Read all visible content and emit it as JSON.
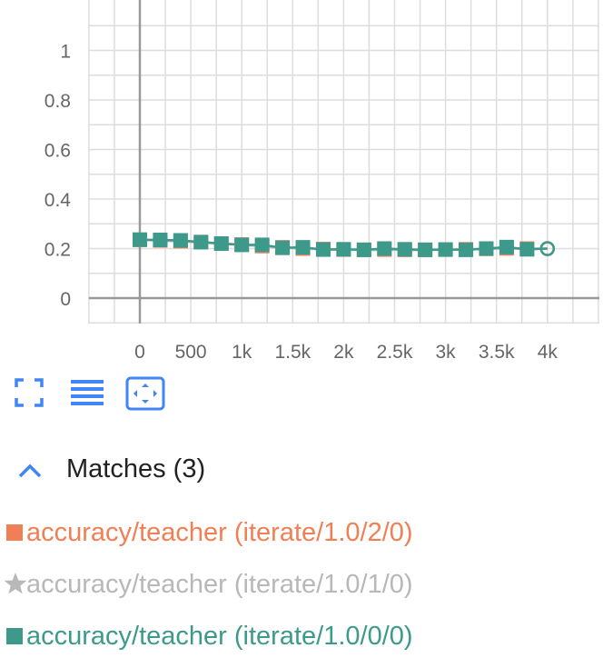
{
  "chart_data": {
    "type": "line",
    "title": "",
    "xlabel": "",
    "ylabel": "",
    "xlim": [
      -500,
      4500
    ],
    "ylim": [
      -0.1,
      1.15
    ],
    "x_ticks": [
      0,
      500,
      1000,
      1500,
      2000,
      2500,
      3000,
      3500,
      4000
    ],
    "x_tick_labels": [
      "0",
      "500",
      "1k",
      "1.5k",
      "2k",
      "2.5k",
      "3k",
      "3.5k",
      "4k"
    ],
    "y_ticks": [
      0,
      0.2,
      0.4,
      0.6,
      0.8,
      1
    ],
    "y_tick_labels": [
      "0",
      "0.2",
      "0.4",
      "0.6",
      "0.8",
      "1"
    ],
    "grid": true,
    "series": [
      {
        "name": "accuracy/teacher (iterate/1.0/2/0)",
        "color": "#f07f55",
        "marker": "square",
        "x": [
          0,
          200,
          400,
          600,
          800,
          1000,
          1200,
          1400,
          1600,
          1800,
          2000,
          2200,
          2400,
          2600,
          2800,
          3000,
          3200,
          3400,
          3600,
          3800,
          4000
        ],
        "y": [
          0.235,
          0.233,
          0.23,
          0.226,
          0.22,
          0.216,
          0.21,
          0.205,
          0.2,
          0.198,
          0.196,
          0.195,
          0.196,
          0.195,
          0.195,
          0.196,
          0.197,
          0.199,
          0.201,
          0.2,
          0.199
        ]
      },
      {
        "name": "accuracy/teacher (iterate/1.0/1/0)",
        "color": "#b8b8b8",
        "marker": "star",
        "x": [
          0,
          200,
          400,
          600,
          800,
          1000,
          1200,
          1400,
          1600,
          1800,
          2000,
          2200,
          2400,
          2600,
          2800,
          3000,
          3200,
          3400,
          3600,
          3800,
          4000
        ],
        "y": [
          0.235,
          0.232,
          0.229,
          0.225,
          0.219,
          0.215,
          0.209,
          0.204,
          0.2,
          0.197,
          0.195,
          0.194,
          0.195,
          0.194,
          0.194,
          0.195,
          0.196,
          0.198,
          0.2,
          0.199,
          0.2
        ]
      },
      {
        "name": "accuracy/teacher (iterate/1.0/0/0)",
        "color": "#3d9a8b",
        "marker": "square",
        "x": [
          0,
          200,
          400,
          600,
          800,
          1000,
          1200,
          1400,
          1600,
          1800,
          2000,
          2200,
          2400,
          2600,
          2800,
          3000,
          3200,
          3400,
          3600,
          3800,
          4000
        ],
        "y": [
          0.236,
          0.235,
          0.233,
          0.226,
          0.22,
          0.215,
          0.215,
          0.203,
          0.205,
          0.196,
          0.197,
          0.195,
          0.2,
          0.197,
          0.195,
          0.196,
          0.195,
          0.2,
          0.206,
          0.197,
          0.2
        ]
      }
    ]
  },
  "toolbar": {
    "buttons": [
      {
        "icon": "fullscreen-icon"
      },
      {
        "icon": "list-icon"
      },
      {
        "icon": "fit-domain-icon"
      }
    ],
    "accent": "#4285f4"
  },
  "matches": {
    "title": "Matches (3)",
    "runs": [
      {
        "label": "accuracy/teacher (iterate/1.0/2/0)",
        "color": "#f07f55",
        "marker": "square"
      },
      {
        "label": "accuracy/teacher (iterate/1.0/1/0)",
        "color": "#b8b8b8",
        "marker": "star"
      },
      {
        "label": "accuracy/teacher (iterate/1.0/0/0)",
        "color": "#3d9a8b",
        "marker": "square"
      }
    ]
  }
}
